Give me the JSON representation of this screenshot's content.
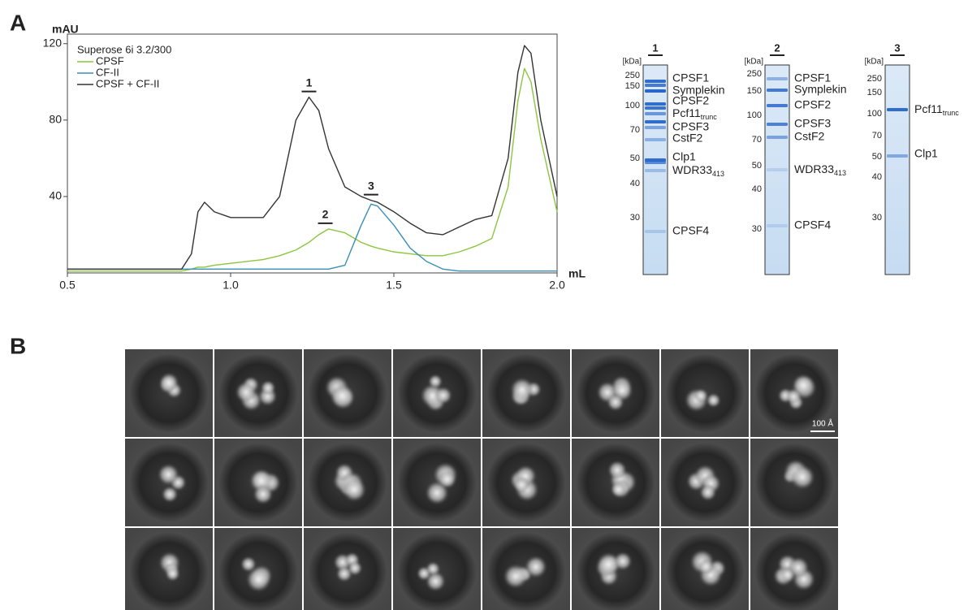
{
  "panel_labels": [
    "A",
    "B"
  ],
  "chart_data": {
    "type": "line",
    "y_label": "mAU",
    "x_label": "mL",
    "legend_title": "Superose 6i 3.2/300",
    "x": [
      0.5,
      0.85,
      0.88,
      0.9,
      0.92,
      0.95,
      1.0,
      1.1,
      1.15,
      1.2,
      1.24,
      1.27,
      1.3,
      1.35,
      1.4,
      1.43,
      1.45,
      1.5,
      1.55,
      1.6,
      1.65,
      1.7,
      1.75,
      1.8,
      1.85,
      1.88,
      1.9,
      1.92,
      1.95,
      2.0
    ],
    "series": [
      {
        "name": "CPSF",
        "color": "#8cc63f",
        "values": [
          1,
          1,
          2,
          3,
          3,
          4,
          5,
          7,
          9,
          12,
          16,
          20,
          23,
          21,
          16,
          14,
          13,
          11,
          10,
          9,
          9,
          11,
          14,
          18,
          45,
          90,
          107,
          100,
          70,
          32
        ]
      },
      {
        "name": "CF-II",
        "color": "#3a8fb7",
        "values": [
          2,
          2,
          2,
          2,
          2,
          2,
          2,
          2,
          2,
          2,
          2,
          2,
          2,
          4,
          25,
          36,
          35,
          25,
          13,
          6,
          2,
          1,
          1,
          1,
          1,
          1,
          1,
          1,
          1,
          1
        ]
      },
      {
        "name": "CPSF + CF-II",
        "color": "#333333",
        "values": [
          2,
          2,
          10,
          32,
          37,
          32,
          29,
          29,
          40,
          80,
          92,
          85,
          65,
          45,
          40,
          38,
          37,
          32,
          26,
          21,
          20,
          24,
          28,
          30,
          60,
          105,
          119,
          115,
          80,
          40
        ]
      }
    ],
    "xlim": [
      0.5,
      2.0
    ],
    "ylim": [
      0,
      125
    ],
    "xticks": [
      0.5,
      {
        "value": 1.0,
        "label": "1.0"
      },
      1.5,
      {
        "value": 2.0,
        "label": "2.0"
      }
    ],
    "yticks": [
      40,
      80,
      120
    ],
    "peaks": [
      {
        "label": "1",
        "x": 1.24,
        "y": 92
      },
      {
        "label": "2",
        "x": 1.29,
        "y": 23
      },
      {
        "label": "3",
        "x": 1.43,
        "y": 38
      }
    ]
  },
  "gels": [
    {
      "lane": "1",
      "unit": "[kDa]",
      "markers": [
        "250",
        "150",
        "100",
        "70",
        "50",
        "40",
        "30"
      ],
      "bands": [
        "CPSF1",
        "Symplekin",
        "CPSF2",
        {
          "text": "Pcf11",
          "sub": "trunc"
        },
        "CPSF3",
        "CstF2",
        "Clp1",
        {
          "text": "WDR33",
          "sub": "413"
        },
        "CPSF4"
      ]
    },
    {
      "lane": "2",
      "unit": "[kDa]",
      "markers": [
        "250",
        "150",
        "100",
        "70",
        "50",
        "40",
        "30"
      ],
      "bands": [
        "CPSF1",
        "Symplekin",
        "CPSF2",
        "CPSF3",
        "CstF2",
        {
          "text": "WDR33",
          "sub": "413"
        },
        "CPSF4"
      ]
    },
    {
      "lane": "3",
      "unit": "[kDa]",
      "markers": [
        "250",
        "150",
        "100",
        "70",
        "50",
        "40",
        "30"
      ],
      "bands": [
        {
          "text": "Pcf11",
          "sub": "trunc"
        },
        "Clp1"
      ]
    }
  ],
  "em": {
    "scale_bar": "100 Å"
  }
}
